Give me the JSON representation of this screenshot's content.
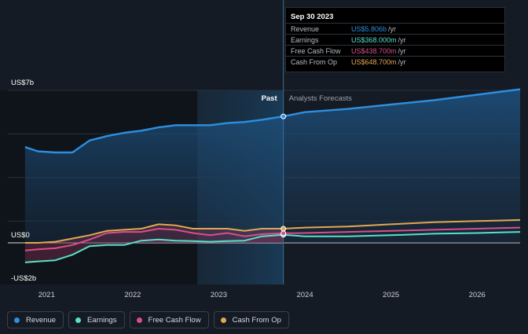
{
  "chart_data": {
    "type": "line",
    "ylabel_top": "US$7b",
    "ylabel_zero": "US$0",
    "ylabel_bottom": "-US$2b",
    "ylim": [
      -2,
      7
    ],
    "x_ticks": [
      "2021",
      "2022",
      "2023",
      "2024",
      "2025",
      "2026"
    ],
    "divider_label_past": "Past",
    "divider_label_forecast": "Analysts Forecasts",
    "series": [
      {
        "name": "Revenue",
        "color": "#2d8fe0",
        "fill": true,
        "points": [
          [
            2020.75,
            4.4
          ],
          [
            2020.9,
            4.2
          ],
          [
            2021.1,
            4.15
          ],
          [
            2021.3,
            4.15
          ],
          [
            2021.5,
            4.7
          ],
          [
            2021.7,
            4.9
          ],
          [
            2021.9,
            5.05
          ],
          [
            2022.1,
            5.15
          ],
          [
            2022.3,
            5.3
          ],
          [
            2022.5,
            5.4
          ],
          [
            2022.7,
            5.4
          ],
          [
            2022.9,
            5.4
          ],
          [
            2023.1,
            5.5
          ],
          [
            2023.3,
            5.55
          ],
          [
            2023.5,
            5.65
          ],
          [
            2023.75,
            5.806
          ],
          [
            2024.0,
            6.0
          ],
          [
            2024.5,
            6.15
          ],
          [
            2025.0,
            6.35
          ],
          [
            2025.5,
            6.55
          ],
          [
            2026.0,
            6.8
          ],
          [
            2026.5,
            7.05
          ]
        ]
      },
      {
        "name": "Earnings",
        "color": "#58e0c8",
        "fill": false,
        "points": [
          [
            2020.75,
            -0.9
          ],
          [
            2020.9,
            -0.85
          ],
          [
            2021.1,
            -0.8
          ],
          [
            2021.3,
            -0.55
          ],
          [
            2021.5,
            -0.15
          ],
          [
            2021.7,
            -0.1
          ],
          [
            2021.9,
            -0.1
          ],
          [
            2022.1,
            0.1
          ],
          [
            2022.3,
            0.15
          ],
          [
            2022.5,
            0.1
          ],
          [
            2022.7,
            0.08
          ],
          [
            2022.9,
            0.05
          ],
          [
            2023.1,
            0.08
          ],
          [
            2023.3,
            0.1
          ],
          [
            2023.5,
            0.3
          ],
          [
            2023.75,
            0.368
          ],
          [
            2024.0,
            0.3
          ],
          [
            2024.5,
            0.3
          ],
          [
            2025.0,
            0.35
          ],
          [
            2025.5,
            0.42
          ],
          [
            2026.0,
            0.45
          ],
          [
            2026.5,
            0.5
          ]
        ]
      },
      {
        "name": "Free Cash Flow",
        "color": "#d94f8a",
        "fill": false,
        "points": [
          [
            2020.75,
            -0.35
          ],
          [
            2020.9,
            -0.3
          ],
          [
            2021.1,
            -0.25
          ],
          [
            2021.3,
            -0.1
          ],
          [
            2021.5,
            0.15
          ],
          [
            2021.7,
            0.45
          ],
          [
            2021.9,
            0.5
          ],
          [
            2022.1,
            0.5
          ],
          [
            2022.3,
            0.65
          ],
          [
            2022.5,
            0.6
          ],
          [
            2022.7,
            0.45
          ],
          [
            2022.9,
            0.35
          ],
          [
            2023.1,
            0.45
          ],
          [
            2023.3,
            0.3
          ],
          [
            2023.5,
            0.4
          ],
          [
            2023.75,
            0.4387
          ],
          [
            2024.0,
            0.45
          ],
          [
            2024.5,
            0.5
          ],
          [
            2025.0,
            0.55
          ],
          [
            2025.5,
            0.6
          ],
          [
            2026.0,
            0.65
          ],
          [
            2026.5,
            0.7
          ]
        ]
      },
      {
        "name": "Cash From Op",
        "color": "#e2a84f",
        "fill": false,
        "points": [
          [
            2020.75,
            0.0
          ],
          [
            2020.9,
            0.0
          ],
          [
            2021.1,
            0.05
          ],
          [
            2021.3,
            0.2
          ],
          [
            2021.5,
            0.35
          ],
          [
            2021.7,
            0.55
          ],
          [
            2021.9,
            0.6
          ],
          [
            2022.1,
            0.65
          ],
          [
            2022.3,
            0.85
          ],
          [
            2022.5,
            0.8
          ],
          [
            2022.7,
            0.65
          ],
          [
            2022.9,
            0.65
          ],
          [
            2023.1,
            0.65
          ],
          [
            2023.3,
            0.55
          ],
          [
            2023.5,
            0.65
          ],
          [
            2023.75,
            0.6487
          ],
          [
            2024.0,
            0.7
          ],
          [
            2024.5,
            0.75
          ],
          [
            2025.0,
            0.85
          ],
          [
            2025.5,
            0.95
          ],
          [
            2026.0,
            1.0
          ],
          [
            2026.5,
            1.05
          ]
        ]
      }
    ],
    "divider_x": 2023.75,
    "shade_from_x": 2022.75,
    "shade_to_x": 2023.75
  },
  "tooltip": {
    "date": "Sep 30 2023",
    "rows": [
      {
        "label": "Revenue",
        "value": "US$5.806b",
        "unit": "/yr",
        "color": "#2d8fe0"
      },
      {
        "label": "Earnings",
        "value": "US$368.000m",
        "unit": "/yr",
        "color": "#58e0c8"
      },
      {
        "label": "Free Cash Flow",
        "value": "US$438.700m",
        "unit": "/yr",
        "color": "#d94f8a"
      },
      {
        "label": "Cash From Op",
        "value": "US$648.700m",
        "unit": "/yr",
        "color": "#e2a84f"
      }
    ]
  },
  "legend": [
    {
      "label": "Revenue",
      "color": "#2d8fe0"
    },
    {
      "label": "Earnings",
      "color": "#58e0c8"
    },
    {
      "label": "Free Cash Flow",
      "color": "#d94f8a"
    },
    {
      "label": "Cash From Op",
      "color": "#e2a84f"
    }
  ]
}
